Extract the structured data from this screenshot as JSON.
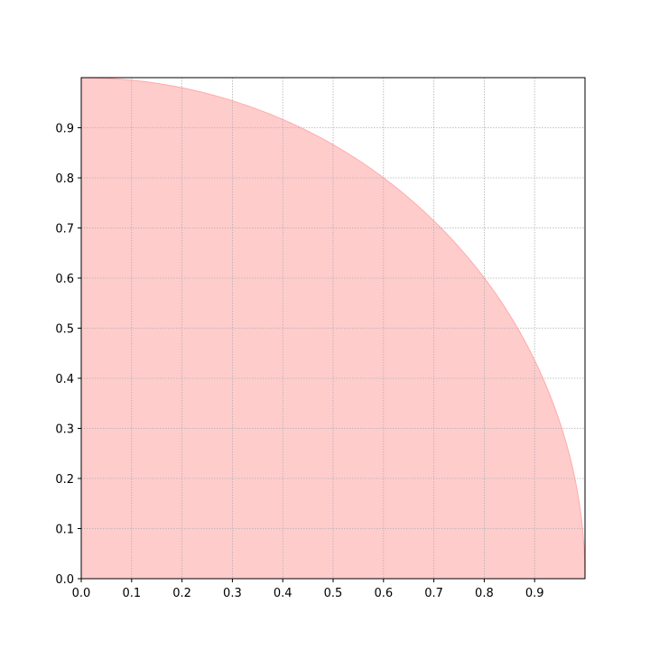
{
  "chart_data": {
    "type": "area",
    "title": "",
    "xlabel": "",
    "ylabel": "",
    "xlim": [
      0,
      1
    ],
    "ylim": [
      0,
      1
    ],
    "grid": true,
    "grid_style": "dotted",
    "x_ticks": [
      "0.0",
      "0.1",
      "0.2",
      "0.3",
      "0.4",
      "0.5",
      "0.6",
      "0.7",
      "0.8",
      "0.9"
    ],
    "y_ticks": [
      "0.0",
      "0.1",
      "0.2",
      "0.3",
      "0.4",
      "0.5",
      "0.6",
      "0.7",
      "0.8",
      "0.9"
    ],
    "series": [
      {
        "shape": "quarter-circle",
        "radius": 1,
        "center": [
          0,
          0
        ],
        "x": [
          0,
          0.1,
          0.2,
          0.3,
          0.4,
          0.5,
          0.6,
          0.7,
          0.8,
          0.9,
          1.0
        ],
        "y": [
          1.0,
          0.995,
          0.98,
          0.954,
          0.917,
          0.866,
          0.8,
          0.714,
          0.6,
          0.436,
          0.0
        ],
        "fill_color": "#ffcccc",
        "edge_color": "#ffaaaa"
      }
    ],
    "colors": {
      "fill": "#ffcccc",
      "edge": "#ffaaaa",
      "grid": "#b0b0b0",
      "axes": "#000000"
    }
  }
}
